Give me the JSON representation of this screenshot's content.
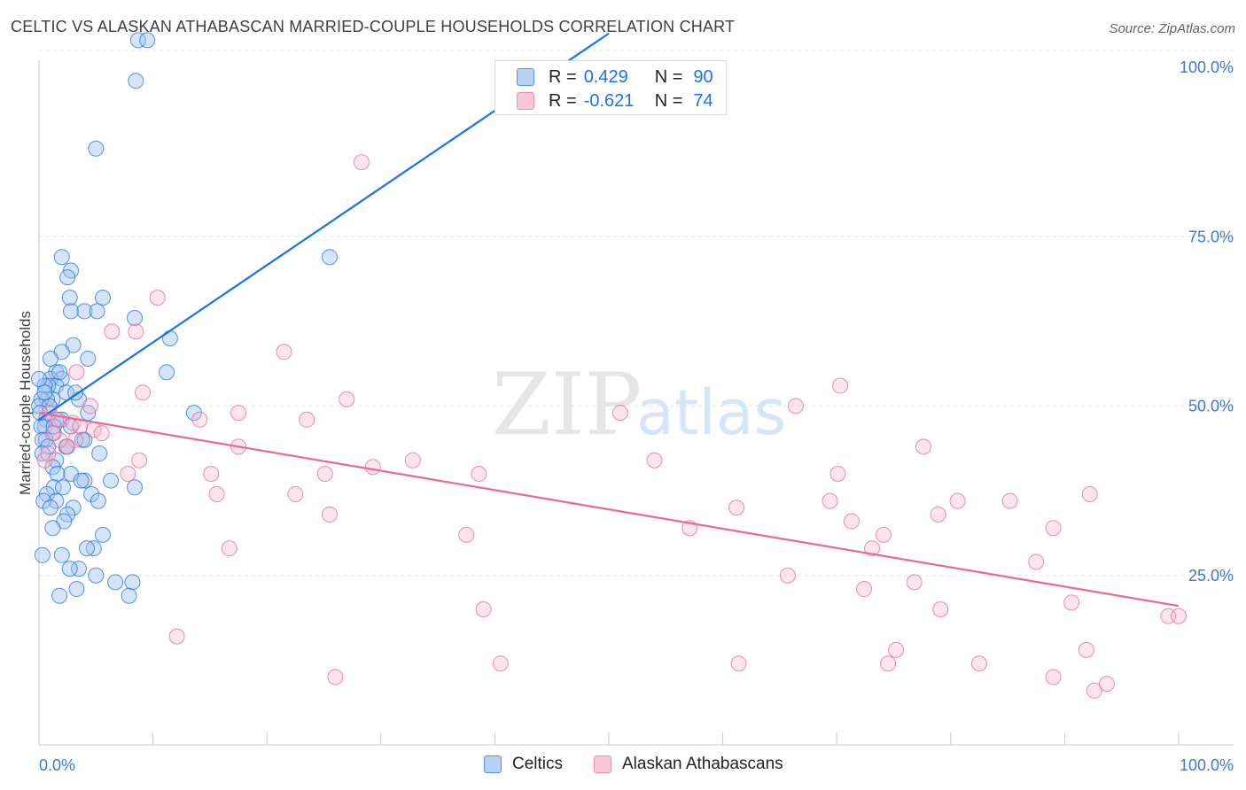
{
  "title": "CELTIC VS ALASKAN ATHABASCAN MARRIED-COUPLE HOUSEHOLDS CORRELATION CHART",
  "source": "Source: ZipAtlas.com",
  "watermark": {
    "zip": "ZIP",
    "atlas": "atlas"
  },
  "legend": {
    "rows": [
      {
        "r_label": "R =",
        "r_value": "0.429",
        "n_label": "N =",
        "n_value": "90",
        "color": "#1a73e8"
      },
      {
        "r_label": "R =",
        "r_value": "-0.621",
        "n_label": "N =",
        "n_value": "74",
        "color": "#e86a92"
      }
    ]
  },
  "bottom_legend": [
    {
      "label": "Celtics"
    },
    {
      "label": "Alaskan Athabascans"
    }
  ],
  "chart_data": {
    "type": "scatter",
    "title": "CELTIC VS ALASKAN ATHABASCAN MARRIED-COUPLE HOUSEHOLDS CORRELATION CHART",
    "xlabel": "",
    "ylabel": "Married-couple Households",
    "xlim": [
      0,
      100
    ],
    "ylim": [
      0,
      105
    ],
    "x_tick_labels": [
      "0.0%",
      "100.0%"
    ],
    "y_ticks": [
      25,
      50,
      75,
      100
    ],
    "y_tick_labels": [
      "25.0%",
      "50.0%",
      "75.0%",
      "100.0%"
    ],
    "grid": true,
    "series": [
      {
        "name": "Celtics",
        "color": "#1a73e8",
        "fill": "rgba(163,196,240,0.45)",
        "r": 0.429,
        "n": 90,
        "trend": {
          "x": [
            0,
            50
          ],
          "y": [
            48,
            105
          ]
        },
        "points": [
          [
            8.7,
            104
          ],
          [
            9.5,
            104
          ],
          [
            8.5,
            98
          ],
          [
            5,
            88
          ],
          [
            2,
            72
          ],
          [
            2.8,
            70
          ],
          [
            2.5,
            69
          ],
          [
            2.7,
            66
          ],
          [
            5.6,
            66
          ],
          [
            2.8,
            64
          ],
          [
            4,
            64
          ],
          [
            5.1,
            64
          ],
          [
            8.4,
            63
          ],
          [
            11.5,
            60
          ],
          [
            3,
            59
          ],
          [
            2,
            58
          ],
          [
            4.3,
            57
          ],
          [
            1,
            57
          ],
          [
            1.5,
            55
          ],
          [
            11.2,
            55
          ],
          [
            2,
            54
          ],
          [
            1,
            54
          ],
          [
            1.5,
            53
          ],
          [
            0.8,
            53
          ],
          [
            0.5,
            53
          ],
          [
            0,
            54
          ],
          [
            2.4,
            52
          ],
          [
            3.5,
            51
          ],
          [
            1.2,
            51
          ],
          [
            0.7,
            51
          ],
          [
            0.2,
            51
          ],
          [
            0,
            50
          ],
          [
            0.9,
            50
          ],
          [
            4.3,
            49
          ],
          [
            13.6,
            49
          ],
          [
            2,
            48
          ],
          [
            1.5,
            48
          ],
          [
            0.6,
            48
          ],
          [
            2.8,
            47
          ],
          [
            0.5,
            47
          ],
          [
            0.2,
            47
          ],
          [
            1.3,
            46
          ],
          [
            3.8,
            45
          ],
          [
            0.6,
            45
          ],
          [
            0.3,
            45
          ],
          [
            4,
            45
          ],
          [
            0.8,
            44
          ],
          [
            2.4,
            44
          ],
          [
            5.3,
            43
          ],
          [
            0.3,
            43
          ],
          [
            1.5,
            42
          ],
          [
            1.2,
            41
          ],
          [
            2.8,
            40
          ],
          [
            1.6,
            40
          ],
          [
            4,
            39
          ],
          [
            6.3,
            39
          ],
          [
            3.7,
            39
          ],
          [
            1.3,
            38
          ],
          [
            2.1,
            38
          ],
          [
            8.4,
            38
          ],
          [
            4.6,
            37
          ],
          [
            0.7,
            37
          ],
          [
            1.5,
            36
          ],
          [
            0.4,
            36
          ],
          [
            3,
            35
          ],
          [
            5.2,
            36
          ],
          [
            1,
            35
          ],
          [
            2.5,
            34
          ],
          [
            2.2,
            33
          ],
          [
            1.2,
            32
          ],
          [
            5.6,
            31
          ],
          [
            4.8,
            29
          ],
          [
            4.2,
            29
          ],
          [
            2,
            28
          ],
          [
            0.3,
            28
          ],
          [
            3.5,
            26
          ],
          [
            2.7,
            26
          ],
          [
            5,
            25
          ],
          [
            8.2,
            24
          ],
          [
            3.3,
            23
          ],
          [
            1.8,
            22
          ],
          [
            25.5,
            72
          ],
          [
            1.3,
            47
          ],
          [
            3.2,
            52
          ],
          [
            2.4,
            44
          ],
          [
            0.5,
            52
          ],
          [
            1.8,
            55
          ],
          [
            0.1,
            49
          ],
          [
            6.7,
            24
          ],
          [
            7.9,
            22
          ]
        ]
      },
      {
        "name": "Alaskan Athabascans",
        "color": "#e86a92",
        "fill": "rgba(246,180,200,0.35)",
        "r": -0.621,
        "n": 74,
        "trend": {
          "x": [
            0,
            100
          ],
          "y": [
            49,
            20.5
          ]
        },
        "points": [
          [
            28.3,
            86
          ],
          [
            10.4,
            66
          ],
          [
            6.4,
            61
          ],
          [
            8.5,
            61
          ],
          [
            21.5,
            58
          ],
          [
            3.3,
            55
          ],
          [
            70.3,
            53
          ],
          [
            9.1,
            52
          ],
          [
            27,
            51
          ],
          [
            4.5,
            50
          ],
          [
            17.5,
            49
          ],
          [
            51,
            49
          ],
          [
            66.4,
            50
          ],
          [
            14.1,
            48
          ],
          [
            23.5,
            48
          ],
          [
            3,
            47.5
          ],
          [
            3.6,
            47
          ],
          [
            4.8,
            46.5
          ],
          [
            5.5,
            46
          ],
          [
            3.2,
            45
          ],
          [
            2.5,
            44
          ],
          [
            1.8,
            45
          ],
          [
            1.2,
            46
          ],
          [
            0.9,
            49
          ],
          [
            1.7,
            48
          ],
          [
            17.5,
            44
          ],
          [
            77.6,
            44
          ],
          [
            32.8,
            42
          ],
          [
            54,
            42
          ],
          [
            8.8,
            42
          ],
          [
            29.3,
            41
          ],
          [
            38.6,
            40
          ],
          [
            25.1,
            40
          ],
          [
            7.8,
            40
          ],
          [
            15.1,
            40
          ],
          [
            70.1,
            40
          ],
          [
            0.5,
            42
          ],
          [
            0.8,
            43
          ],
          [
            22.5,
            37
          ],
          [
            15.6,
            37
          ],
          [
            61.2,
            35
          ],
          [
            69.4,
            36
          ],
          [
            80.6,
            36
          ],
          [
            92.2,
            37
          ],
          [
            85.2,
            36
          ],
          [
            25.5,
            34
          ],
          [
            71.3,
            33
          ],
          [
            78.9,
            34
          ],
          [
            57.1,
            32
          ],
          [
            89,
            32
          ],
          [
            74.1,
            31
          ],
          [
            37.5,
            31
          ],
          [
            73.1,
            29
          ],
          [
            16.7,
            29
          ],
          [
            87.5,
            27
          ],
          [
            65.7,
            25
          ],
          [
            76.8,
            24
          ],
          [
            72.4,
            23
          ],
          [
            90.6,
            21
          ],
          [
            39,
            20
          ],
          [
            79.1,
            20
          ],
          [
            99.1,
            19
          ],
          [
            100,
            19
          ],
          [
            12.1,
            16
          ],
          [
            91.9,
            14
          ],
          [
            75.2,
            14
          ],
          [
            61.4,
            12
          ],
          [
            40.5,
            12
          ],
          [
            74.5,
            12
          ],
          [
            82.5,
            12
          ],
          [
            26,
            10
          ],
          [
            89,
            10
          ],
          [
            92.6,
            8
          ],
          [
            93.7,
            9
          ]
        ]
      }
    ]
  }
}
